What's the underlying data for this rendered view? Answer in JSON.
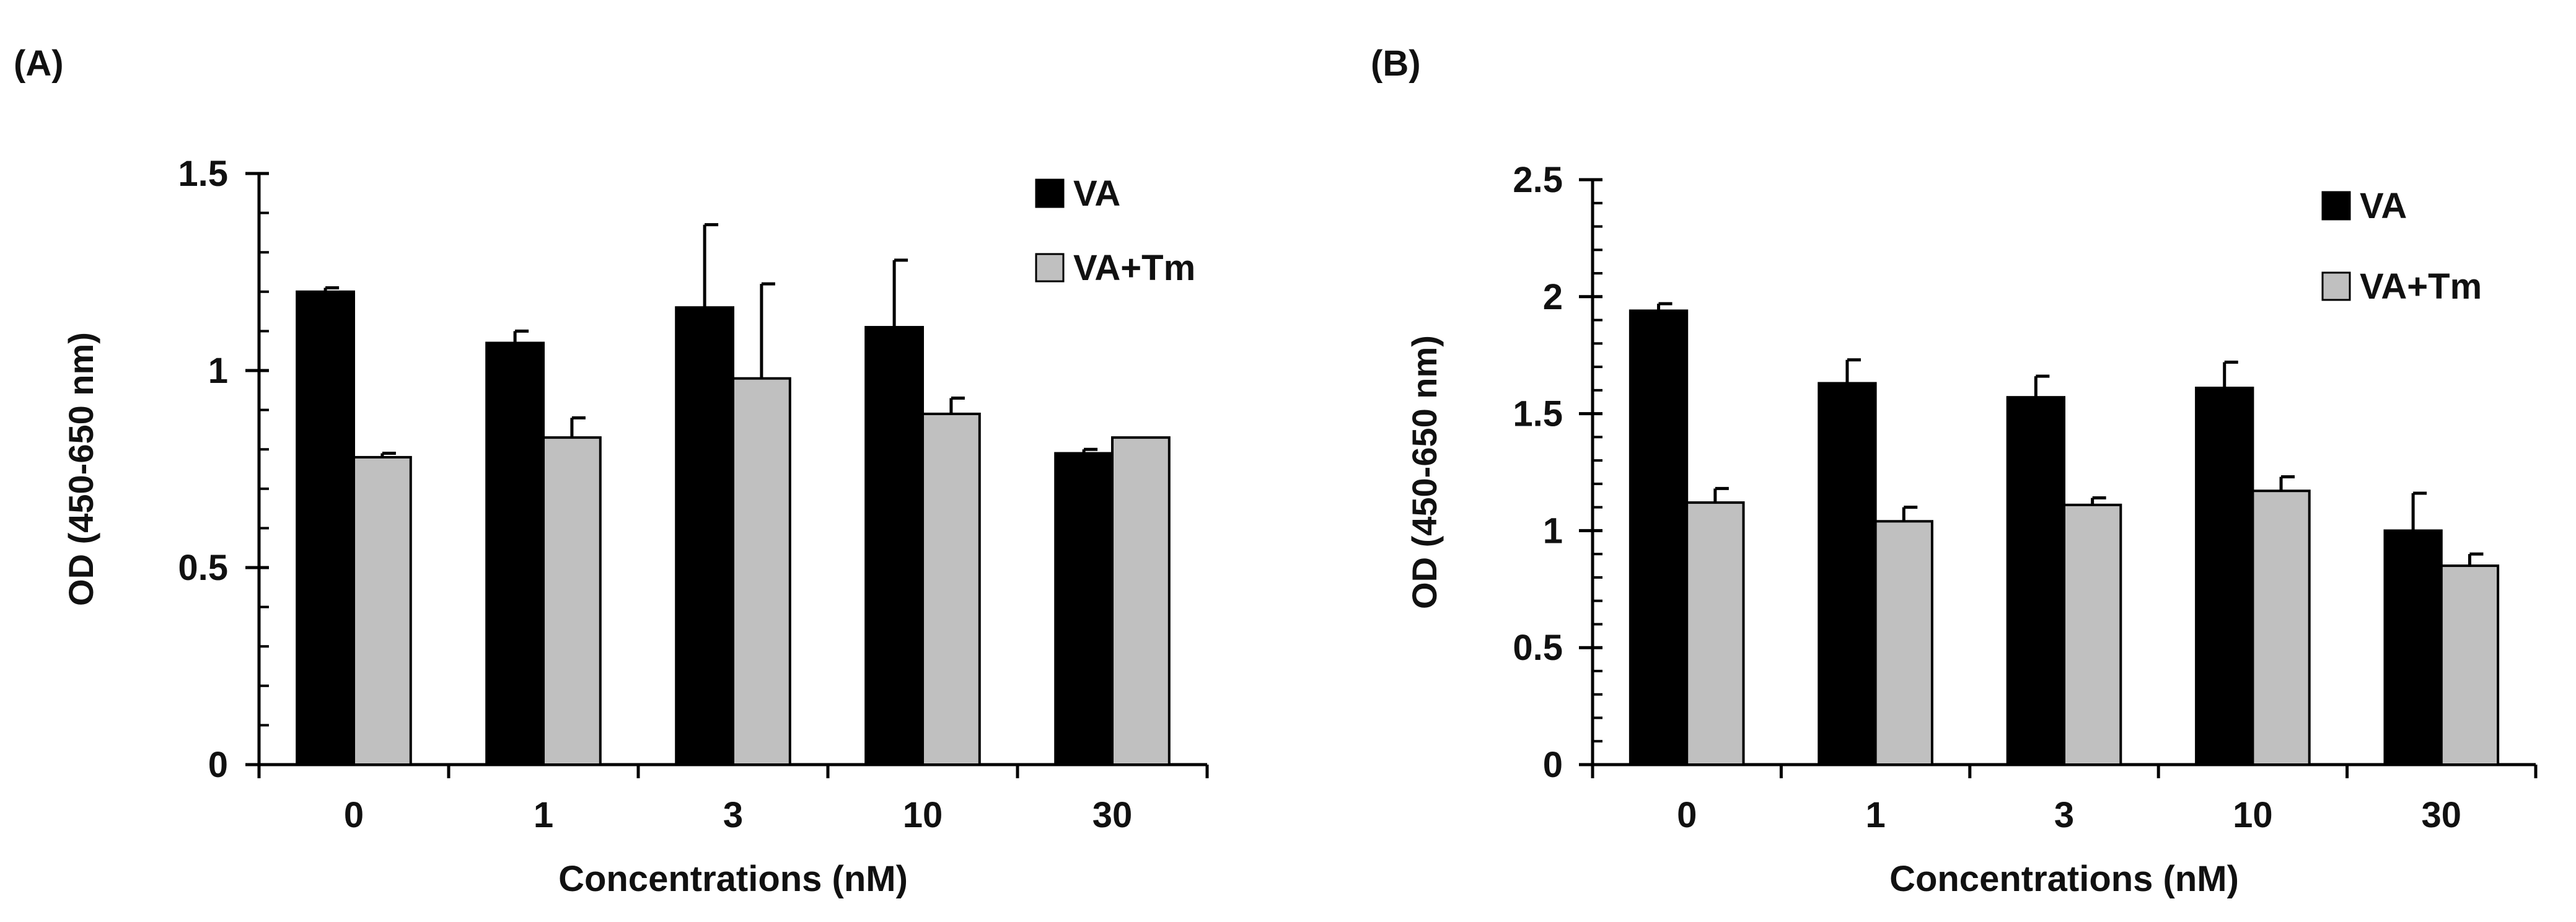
{
  "colors": {
    "va": "#000000",
    "va_tm": "#c0c0c0",
    "axis": "#000000"
  },
  "chart_data": [
    {
      "type": "bar",
      "panel_label": "(A)",
      "categories": [
        "0",
        "1",
        "3",
        "10",
        "30"
      ],
      "series": [
        {
          "name": "VA",
          "values": [
            1.2,
            1.07,
            1.16,
            1.11,
            0.79
          ],
          "errors": [
            0.01,
            0.03,
            0.21,
            0.17,
            0.01
          ]
        },
        {
          "name": "VA+Tm",
          "values": [
            0.78,
            0.83,
            0.98,
            0.89,
            0.83
          ],
          "errors": [
            0.01,
            0.05,
            0.24,
            0.04,
            0.0
          ]
        }
      ],
      "xlabel": "Concentrations (nM)",
      "ylabel": "OD (450-650 nm)",
      "ylim": [
        0,
        1.5
      ],
      "yticks": [
        0,
        0.5,
        1,
        1.5
      ],
      "ytick_labels": [
        "0",
        "0.5",
        "1",
        "1.5"
      ],
      "minor_step": 0.1,
      "legend": [
        "VA",
        "VA+Tm"
      ],
      "legend_position": "top-right"
    },
    {
      "type": "bar",
      "panel_label": "(B)",
      "categories": [
        "0",
        "1",
        "3",
        "10",
        "30"
      ],
      "series": [
        {
          "name": "VA",
          "values": [
            1.94,
            1.63,
            1.57,
            1.61,
            1.0
          ],
          "errors": [
            0.03,
            0.1,
            0.09,
            0.11,
            0.16
          ]
        },
        {
          "name": "VA+Tm",
          "values": [
            1.12,
            1.04,
            1.11,
            1.17,
            0.85
          ],
          "errors": [
            0.06,
            0.06,
            0.03,
            0.06,
            0.05
          ]
        }
      ],
      "xlabel": "Concentrations (nM)",
      "ylabel": "OD (450-650 nm)",
      "ylim": [
        0,
        2.5
      ],
      "yticks": [
        0,
        0.5,
        1,
        1.5,
        2,
        2.5
      ],
      "ytick_labels": [
        "0",
        "0.5",
        "1",
        "1.5",
        "2",
        "2.5"
      ],
      "minor_step": 0.1,
      "legend": [
        "VA",
        "VA+Tm"
      ],
      "legend_position": "top-right"
    }
  ]
}
